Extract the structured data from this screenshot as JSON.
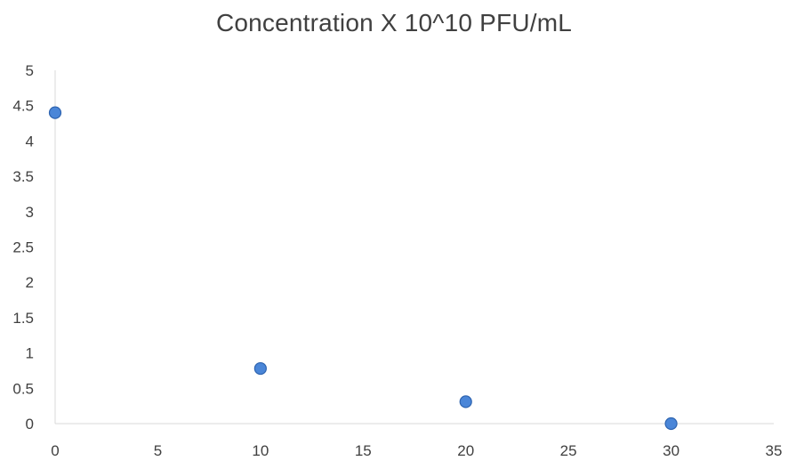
{
  "chart_data": {
    "type": "scatter",
    "title": "Concentration X 10^10 PFU/mL",
    "xlabel": "",
    "ylabel": "",
    "xlim": [
      0,
      35
    ],
    "ylim": [
      0,
      5
    ],
    "x_ticks": [
      "0",
      "5",
      "10",
      "15",
      "20",
      "25",
      "30",
      "35"
    ],
    "y_ticks": [
      "0",
      "0.5",
      "1",
      "1.5",
      "2",
      "2.5",
      "3",
      "3.5",
      "4",
      "4.5",
      "5"
    ],
    "grid": false,
    "legend": "none",
    "series": [
      {
        "color": "#4a86d8",
        "points": [
          {
            "x": 0,
            "y": 4.4
          },
          {
            "x": 10,
            "y": 0.78
          },
          {
            "x": 20,
            "y": 0.31
          },
          {
            "x": 30,
            "y": 0.0
          }
        ]
      }
    ]
  }
}
